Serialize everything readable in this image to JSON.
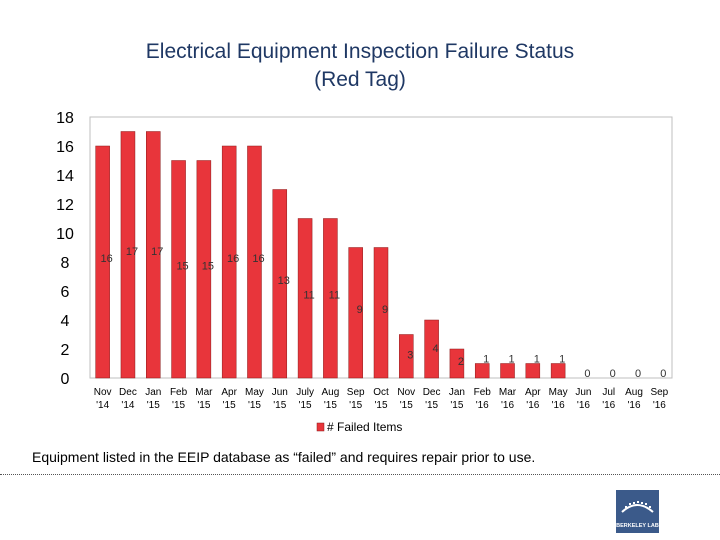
{
  "title_line1": "Electrical Equipment Inspection Failure Status",
  "title_line2": "(Red Tag)",
  "caption": "Equipment listed in the EEIP database as “failed” and requires repair prior to use.",
  "logo_text": "BERKELEY LAB",
  "colors": {
    "bar": "#e8353b",
    "bar_stroke": "#8b1a1a",
    "title": "#1f3864",
    "logo": "#3b5a8a"
  },
  "chart_data": {
    "type": "bar",
    "title": "Electrical Equipment Inspection Failure Status (Red Tag)",
    "categories": [
      [
        "Nov",
        "'14"
      ],
      [
        "Dec",
        "'14"
      ],
      [
        "Jan",
        "'15"
      ],
      [
        "Feb",
        "'15"
      ],
      [
        "Mar",
        "'15"
      ],
      [
        "Apr",
        "'15"
      ],
      [
        "May",
        "'15"
      ],
      [
        "Jun",
        "'15"
      ],
      [
        "July",
        "'15"
      ],
      [
        "Aug",
        "'15"
      ],
      [
        "Sep",
        "'15"
      ],
      [
        "Oct",
        "'15"
      ],
      [
        "Nov",
        "'15"
      ],
      [
        "Dec",
        "'15"
      ],
      [
        "Jan",
        "'15"
      ],
      [
        "Feb",
        "'16"
      ],
      [
        "Mar",
        "'16"
      ],
      [
        "Apr",
        "'16"
      ],
      [
        "May",
        "'16"
      ],
      [
        "Jun",
        "'16"
      ],
      [
        "Jul",
        "'16"
      ],
      [
        "Aug",
        "'16"
      ],
      [
        "Sep",
        "'16"
      ]
    ],
    "series": [
      {
        "name": "# Failed Items",
        "values": [
          16,
          17,
          17,
          15,
          15,
          16,
          16,
          13,
          11,
          11,
          9,
          9,
          3,
          4,
          2,
          1,
          1,
          1,
          1,
          0,
          0,
          0,
          0
        ]
      }
    ],
    "ylim": [
      0,
      18
    ],
    "yticks": [
      0,
      2,
      4,
      6,
      8,
      10,
      12,
      14,
      16,
      18
    ],
    "legend": "bottom",
    "grid": false
  }
}
